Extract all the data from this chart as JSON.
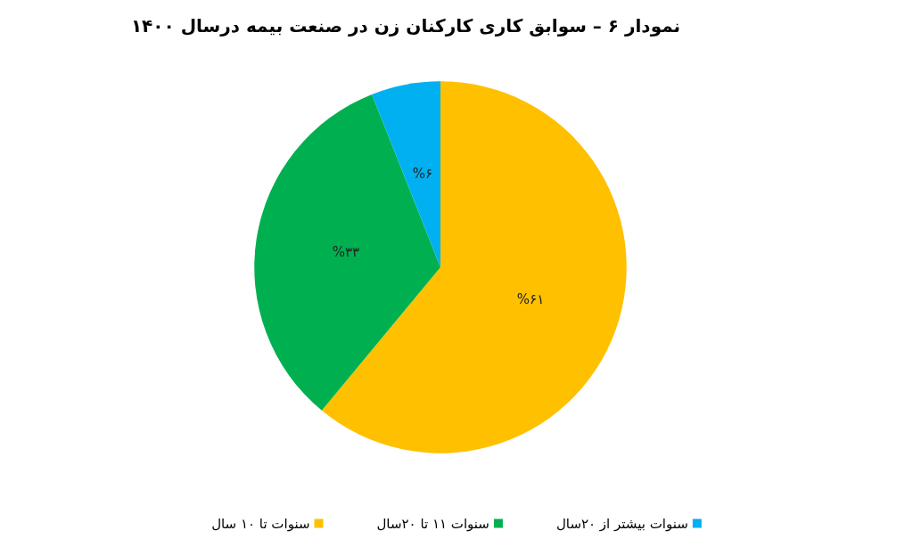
{
  "chart_data": {
    "type": "pie",
    "title": "نمودار ۶ – سوابق کاری کارکنان زن در صنعت بیمه درسال ۱۴۰۰",
    "categories": [
      "سنوات تا ۱۰ سال",
      "سنوات ۱۱ تا ۲۰سال",
      "سنوات بیشتر از ۲۰سال"
    ],
    "values": [
      61,
      33,
      6
    ],
    "colors": [
      "#ffc000",
      "#00b050",
      "#00b0f0"
    ],
    "value_labels": [
      "%۶۱",
      "%۳۳",
      "%۶"
    ],
    "legend": "bottom"
  }
}
